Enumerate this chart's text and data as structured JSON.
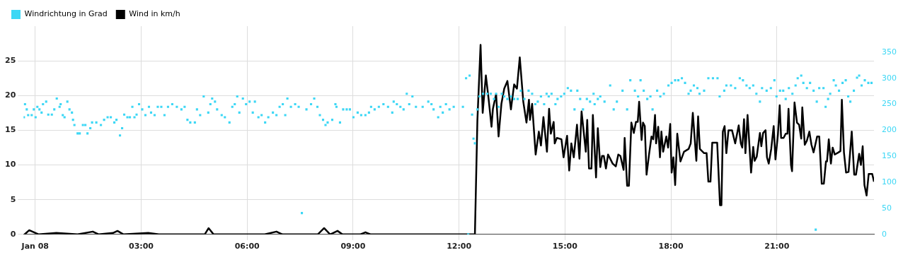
{
  "chart_data": {
    "type": "line",
    "xlim": [
      -0.33,
      23.75
    ],
    "xticks": [
      {
        "value": 0,
        "label": "Jan 08"
      },
      {
        "value": 3,
        "label": "03:00"
      },
      {
        "value": 6,
        "label": "06:00"
      },
      {
        "value": 9,
        "label": "09:00"
      },
      {
        "value": 12,
        "label": "12:00"
      },
      {
        "value": 15,
        "label": "15:00"
      },
      {
        "value": 18,
        "label": "18:00"
      },
      {
        "value": 21,
        "label": "21:00"
      }
    ],
    "ylim": [
      0,
      30
    ],
    "yticks": [
      0,
      5,
      10,
      15,
      20,
      25
    ],
    "y2lim": [
      0,
      400
    ],
    "y2ticks": [
      0,
      50,
      100,
      150,
      200,
      250,
      300,
      350
    ],
    "grid": true,
    "legend": "top left",
    "series": [
      {
        "name": "Windrichtung in Grad",
        "type": "scatter",
        "axis": "y2",
        "marker": "square",
        "color": "#3cd7f5",
        "x": [
          -0.32,
          -0.29,
          -0.24,
          -0.2,
          -0.1,
          -0.04,
          0.01,
          0.06,
          0.12,
          0.18,
          0.22,
          0.31,
          0.37,
          0.47,
          0.54,
          0.61,
          0.69,
          0.72,
          0.78,
          0.83,
          0.91,
          0.97,
          1.04,
          1.07,
          1.11,
          1.2,
          1.26,
          1.35,
          1.42,
          1.48,
          1.56,
          1.61,
          1.73,
          1.86,
          1.95,
          2.05,
          2.14,
          2.24,
          2.3,
          2.4,
          2.46,
          2.52,
          2.61,
          2.68,
          2.75,
          2.81,
          2.87,
          2.94,
          3.03,
          3.12,
          3.22,
          3.28,
          3.38,
          3.47,
          3.57,
          3.66,
          3.76,
          3.88,
          4.01,
          4.14,
          4.23,
          4.31,
          4.39,
          4.52,
          4.58,
          4.67,
          4.77,
          4.9,
          4.96,
          5.01,
          5.09,
          5.15,
          5.28,
          5.37,
          5.5,
          5.58,
          5.65,
          5.72,
          5.78,
          5.88,
          5.97,
          6.07,
          6.16,
          6.22,
          6.32,
          6.41,
          6.51,
          6.6,
          6.73,
          6.83,
          6.92,
          7.01,
          7.08,
          7.14,
          7.24,
          7.36,
          7.46,
          7.55,
          7.68,
          7.81,
          7.9,
          7.99,
          8.06,
          8.15,
          8.22,
          8.28,
          8.41,
          8.5,
          8.53,
          8.63,
          8.72,
          8.82,
          8.91,
          9.01,
          9.13,
          9.23,
          9.35,
          9.45,
          9.51,
          9.61,
          9.73,
          9.86,
          9.99,
          10.11,
          10.15,
          10.24,
          10.34,
          10.43,
          10.52,
          10.59,
          10.68,
          10.78,
          10.97,
          11.13,
          11.22,
          11.28,
          11.41,
          11.47,
          11.54,
          11.63,
          11.73,
          11.85,
          12.11,
          12.2,
          12.26,
          12.3,
          12.37,
          12.41,
          12.45,
          12.52,
          12.58,
          12.68,
          12.8,
          12.9,
          12.99,
          13.05,
          13.12,
          13.21,
          13.28,
          13.37,
          13.47,
          13.56,
          13.66,
          13.75,
          13.85,
          13.97,
          14.07,
          14.16,
          14.23,
          14.32,
          14.41,
          14.48,
          14.54,
          14.62,
          14.73,
          14.79,
          14.89,
          14.98,
          15.08,
          15.17,
          15.27,
          15.35,
          15.43,
          15.51,
          15.62,
          15.71,
          15.81,
          15.84,
          15.93,
          16.0,
          16.12,
          16.28,
          16.38,
          16.47,
          16.63,
          16.76,
          16.85,
          16.98,
          17.07,
          17.14,
          17.23,
          17.33,
          17.42,
          17.48,
          17.61,
          17.7,
          17.8,
          17.93,
          18.02,
          18.12,
          18.21,
          18.31,
          18.4,
          18.5,
          18.56,
          18.65,
          18.75,
          18.81,
          18.94,
          19.06,
          19.19,
          19.32,
          19.38,
          19.51,
          19.57,
          19.7,
          19.82,
          19.95,
          20.04,
          20.14,
          20.23,
          20.33,
          20.42,
          20.52,
          20.58,
          20.71,
          20.83,
          20.93,
          20.99,
          21.09,
          21.18,
          21.25,
          21.34,
          21.44,
          21.53,
          21.59,
          21.69,
          21.75,
          21.85,
          21.94,
          22.04,
          22.1,
          22.13,
          22.2,
          22.32,
          22.38,
          22.45,
          22.51,
          22.61,
          22.67,
          22.76,
          22.86,
          22.95,
          23.02,
          23.08,
          23.18,
          23.27,
          23.33,
          23.4,
          23.49,
          23.59,
          23.68
        ],
        "values": [
          225,
          250,
          240,
          229,
          229,
          240,
          225,
          245,
          240,
          234,
          250,
          255,
          230,
          230,
          240,
          261,
          245,
          250,
          229,
          225,
          255,
          240,
          234,
          220,
          210,
          194,
          194,
          210,
          210,
          194,
          204,
          215,
          215,
          210,
          220,
          225,
          225,
          215,
          220,
          190,
          204,
          230,
          225,
          225,
          245,
          225,
          230,
          250,
          240,
          229,
          245,
          234,
          229,
          245,
          245,
          229,
          245,
          250,
          245,
          240,
          245,
          220,
          215,
          215,
          240,
          229,
          265,
          234,
          250,
          261,
          255,
          240,
          229,
          225,
          215,
          245,
          250,
          265,
          234,
          261,
          250,
          255,
          234,
          255,
          225,
          229,
          215,
          225,
          234,
          229,
          245,
          250,
          229,
          261,
          245,
          250,
          245,
          41,
          240,
          250,
          261,
          245,
          229,
          220,
          210,
          215,
          220,
          250,
          245,
          215,
          240,
          240,
          240,
          225,
          234,
          229,
          229,
          234,
          245,
          240,
          245,
          250,
          245,
          234,
          255,
          250,
          245,
          240,
          270,
          250,
          265,
          245,
          245,
          255,
          250,
          240,
          225,
          245,
          234,
          250,
          240,
          245,
          245,
          300,
          0,
          305,
          230,
          184,
          175,
          240,
          265,
          270,
          270,
          270,
          260,
          270,
          245,
          270,
          265,
          260,
          265,
          260,
          260,
          276,
          260,
          276,
          270,
          250,
          255,
          265,
          250,
          270,
          265,
          270,
          250,
          260,
          265,
          270,
          281,
          276,
          240,
          276,
          260,
          240,
          260,
          255,
          270,
          250,
          260,
          265,
          255,
          286,
          240,
          255,
          276,
          240,
          296,
          276,
          265,
          296,
          276,
          260,
          265,
          240,
          276,
          265,
          270,
          286,
          291,
          296,
          296,
          300,
          291,
          270,
          276,
          286,
          281,
          270,
          276,
          300,
          300,
          300,
          265,
          276,
          286,
          286,
          281,
          300,
          296,
          286,
          281,
          286,
          270,
          255,
          281,
          276,
          281,
          296,
          265,
          276,
          276,
          260,
          281,
          270,
          286,
          300,
          305,
          291,
          281,
          291,
          276,
          9,
          255,
          281,
          281,
          245,
          260,
          270,
          296,
          286,
          276,
          291,
          296,
          265,
          255,
          276,
          301,
          305,
          286,
          296,
          291,
          291
        ]
      },
      {
        "name": "Wind in km/h",
        "marker": "none",
        "color": "#000000",
        "x": [
          -0.3,
          -0.17,
          0.1,
          0.6,
          1.2,
          1.63,
          1.8,
          2.2,
          2.33,
          2.5,
          3.2,
          3.5,
          4.8,
          4.91,
          5.05,
          6.5,
          6.83,
          7.0,
          8.0,
          8.18,
          8.35,
          8.56,
          8.7,
          9.2,
          9.35,
          9.5,
          12.45,
          12.52,
          12.61,
          12.67,
          12.76,
          12.84,
          12.92,
          12.96,
          13.05,
          13.12,
          13.2,
          13.28,
          13.37,
          13.47,
          13.56,
          13.64,
          13.72,
          13.82,
          13.91,
          13.98,
          14.01,
          14.07,
          14.17,
          14.26,
          14.32,
          14.39,
          14.49,
          14.55,
          14.6,
          14.68,
          14.71,
          14.77,
          14.9,
          14.96,
          15.06,
          15.12,
          15.18,
          15.25,
          15.34,
          15.41,
          15.47,
          15.59,
          15.63,
          15.68,
          15.75,
          15.79,
          15.88,
          15.93,
          16.0,
          16.05,
          16.1,
          16.16,
          16.22,
          16.29,
          16.35,
          16.44,
          16.51,
          16.57,
          16.66,
          16.69,
          16.76,
          16.81,
          16.88,
          16.95,
          17.01,
          17.06,
          17.1,
          17.17,
          17.21,
          17.26,
          17.31,
          17.38,
          17.45,
          17.5,
          17.55,
          17.58,
          17.64,
          17.69,
          17.73,
          17.78,
          17.87,
          17.92,
          17.98,
          18.02,
          18.07,
          18.12,
          18.18,
          18.27,
          18.37,
          18.5,
          18.56,
          18.62,
          18.72,
          18.77,
          18.82,
          18.94,
          19.01,
          19.06,
          19.12,
          19.17,
          19.31,
          19.39,
          19.43,
          19.47,
          19.52,
          19.57,
          19.63,
          19.73,
          19.82,
          19.92,
          19.98,
          20.02,
          20.07,
          20.11,
          20.17,
          20.27,
          20.33,
          20.37,
          20.43,
          20.52,
          20.56,
          20.61,
          20.68,
          20.72,
          20.77,
          20.84,
          20.91,
          20.96,
          21.03,
          21.08,
          21.12,
          21.19,
          21.25,
          21.3,
          21.33,
          21.4,
          21.43,
          21.5,
          21.57,
          21.63,
          21.69,
          21.72,
          21.79,
          21.85,
          21.92,
          21.98,
          22.04,
          22.14,
          22.2,
          22.27,
          22.33,
          22.39,
          22.42,
          22.47,
          22.53,
          22.58,
          22.64,
          22.74,
          22.8,
          22.84,
          22.9,
          22.96,
          23.03,
          23.12,
          23.19,
          23.24,
          23.33,
          23.38,
          23.43,
          23.48,
          23.54,
          23.6,
          23.7,
          23.75
        ],
        "values": [
          0,
          0.6,
          0,
          0.2,
          0,
          0.4,
          0,
          0.2,
          0.5,
          0,
          0.2,
          0,
          0,
          0.9,
          0,
          0,
          0.4,
          0,
          0,
          0.9,
          0,
          0.5,
          0,
          0,
          0.3,
          0,
          0,
          16.4,
          27.3,
          17.5,
          22.9,
          19.4,
          15.5,
          18.1,
          20.2,
          14.1,
          18.8,
          21.0,
          22.1,
          18.0,
          21.6,
          21.0,
          25.5,
          19.1,
          16.1,
          19.4,
          16.5,
          18.8,
          11.5,
          14.8,
          12.8,
          16.9,
          11.9,
          18.1,
          14.5,
          16.2,
          13.1,
          13.9,
          13.7,
          11.1,
          14.2,
          9.2,
          13.1,
          11.1,
          15.8,
          10.9,
          17.7,
          11.9,
          16.5,
          9.5,
          9.5,
          17.2,
          8.2,
          15.3,
          9.7,
          11.3,
          11.3,
          9.5,
          11.5,
          10.8,
          10.2,
          9.8,
          11.5,
          11.3,
          9.3,
          13.9,
          7.0,
          7.0,
          16.1,
          14.6,
          16.2,
          16.2,
          19.1,
          13.6,
          16.1,
          15.6,
          8.6,
          11.5,
          14.1,
          13.7,
          17.2,
          13.1,
          15.5,
          11.1,
          14.8,
          11.9,
          14.1,
          12.5,
          15.9,
          8.9,
          11.1,
          7.1,
          14.5,
          10.5,
          11.9,
          12.3,
          13.1,
          17.5,
          10.6,
          17.0,
          12.3,
          11.7,
          11.7,
          7.6,
          7.6,
          13.2,
          13.2,
          4.2,
          4.2,
          14.8,
          15.6,
          11.7,
          15.0,
          15.0,
          13.1,
          15.7,
          13.1,
          12.5,
          16.6,
          11.7,
          17.2,
          8.9,
          12.6,
          10.6,
          11.2,
          14.6,
          12.7,
          14.6,
          15.0,
          11.1,
          10.2,
          12.3,
          15.6,
          10.8,
          14.4,
          18.6,
          13.9,
          13.9,
          14.5,
          14.5,
          18.1,
          10.0,
          9.1,
          19.0,
          16.1,
          15.8,
          13.8,
          18.3,
          12.9,
          13.5,
          14.8,
          12.9,
          11.8,
          14.1,
          14.1,
          7.3,
          7.3,
          10.5,
          10.5,
          13.7,
          10.2,
          12.5,
          11.5,
          11.8,
          12.0,
          19.4,
          11.8,
          8.9,
          9.0,
          14.8,
          8.6,
          8.6,
          11.6,
          10.0,
          12.7,
          7.1,
          5.6,
          8.7,
          8.7,
          7.6
        ]
      }
    ]
  }
}
